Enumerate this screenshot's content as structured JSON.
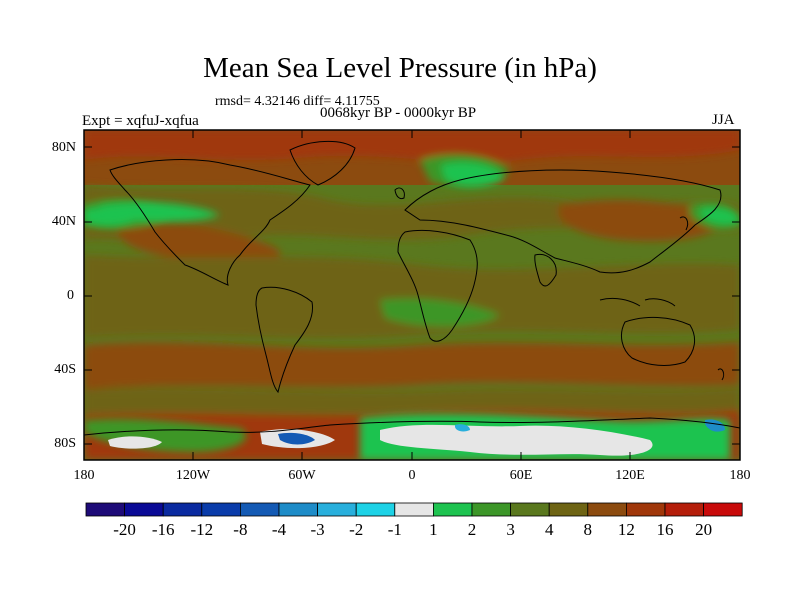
{
  "title": "Mean Sea Level Pressure (in hPa)",
  "stats": "rmsd= 4.32146 diff= 4.11755",
  "experiment": "Expt = xqfuJ-xqfua",
  "period": "0068kyr BP - 0000kyr BP",
  "season": "JJA",
  "axes": {
    "y_ticks": [
      "80N",
      "40N",
      "0",
      "40S",
      "80S"
    ],
    "x_ticks": [
      "180",
      "120W",
      "60W",
      "0",
      "60E",
      "120E",
      "180"
    ]
  },
  "colorbar": {
    "labels": [
      "-20",
      "-16",
      "-12",
      "-8",
      "-4",
      "-3",
      "-2",
      "-1",
      "1",
      "2",
      "3",
      "4",
      "8",
      "12",
      "16",
      "20"
    ],
    "colors": [
      "#1e0b78",
      "#0a0a96",
      "#0a2aa0",
      "#0a3caa",
      "#145ab4",
      "#1e8cc8",
      "#28afdc",
      "#1ed2e6",
      "#e6e6e6",
      "#1ec350",
      "#3c9628",
      "#5a781e",
      "#6e6414",
      "#8c4b0f",
      "#a0370a",
      "#b41e0a",
      "#c80a0a"
    ]
  },
  "palette": {
    "land_base": "#5a781e",
    "ocean_mid": "#6e6414",
    "high": "#8c4b0f",
    "higher": "#a0370a",
    "low_green": "#1ec350",
    "mid_green": "#3c9628",
    "white": "#e6e6e6",
    "blue": "#28afdc"
  }
}
